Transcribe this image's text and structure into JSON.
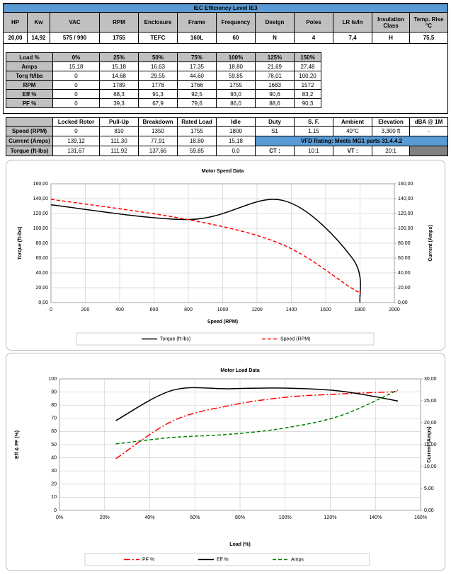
{
  "spec_table": {
    "title": "IEC Efficiency Level IE3",
    "headers": [
      "HP",
      "Kw",
      "VAC",
      "RPM",
      "Enclosure",
      "Frame",
      "Frequency",
      "Design",
      "Poles",
      "LR ls/ln",
      "Insulation Class",
      "Temp. Rise °C"
    ],
    "row": [
      "20,00",
      "14,92",
      "575 / 990",
      "1755",
      "TEFC",
      "160L",
      "60",
      "N",
      "4",
      "7,4",
      "H",
      "75,5"
    ]
  },
  "load_table": {
    "headers": [
      "Load %",
      "0%",
      "25%",
      "50%",
      "75%",
      "100%",
      "125%",
      "150%"
    ],
    "rows": [
      [
        "Amps",
        "15,18",
        "15,18",
        "16,63",
        "17,35",
        "18,80",
        "21,69",
        "27,48"
      ],
      [
        "Torq ft/lbs",
        "0",
        "14,68",
        "29,55",
        "44,60",
        "59,85",
        "78,01",
        "100,20"
      ],
      [
        "RPM",
        "0",
        "1789",
        "1778",
        "1766",
        "1755",
        "1683",
        "1572"
      ],
      [
        "Eff %",
        "0",
        "68,3",
        "91,3",
        "92,5",
        "93,0",
        "90,6",
        "83,2"
      ],
      [
        "PF %",
        "0",
        "39,3",
        "67,9",
        "79,6",
        "86,0",
        "88,6",
        "90,3"
      ]
    ]
  },
  "performance_table": {
    "headers": [
      "Locked Rotor",
      "Pull-Up",
      "Breakdown",
      "Rated Load",
      "Idle",
      "Duty",
      "S. F.",
      "Ambient",
      "Elevation",
      "dBA @ 1M"
    ],
    "rows": [
      [
        "Speed (RPM)",
        "0",
        "810",
        "1350",
        "1755",
        "1800",
        "S1",
        "1,15",
        "40°C",
        "3,300 ft",
        "-"
      ],
      [
        "Current (Amps)",
        "139,12",
        "111,30",
        "77,91",
        "18,80",
        "15,18",
        "VFD Rating: Meets MG1 parts 31.4.4.2"
      ],
      [
        "Torque (ft-lbs)",
        "131,67",
        "111,92",
        "137,66",
        "59,85",
        "0,0",
        "CT :",
        "10:1",
        "VT :",
        "20:1"
      ]
    ]
  },
  "chart_data": [
    {
      "type": "line",
      "title": "Motor Speed Data",
      "x_label": "Speed (RPM)",
      "y_label": "Torque (ft-lbs)",
      "y2_label": "Current (Amps)",
      "x": [
        0,
        810,
        1350,
        1755,
        1800
      ],
      "series": [
        {
          "name": "Torque (ft-lbs)",
          "color": "#000000",
          "style": "solid",
          "values": [
            131.67,
            111.92,
            137.66,
            59.85,
            0
          ]
        },
        {
          "name": "Speed (RPM)",
          "color": "#ff0000",
          "style": "dashed",
          "axis": "y2",
          "values": [
            139.12,
            111.3,
            77.91,
            18.8,
            15.18
          ]
        }
      ],
      "xlim": [
        0,
        2000
      ],
      "xticks": [
        0,
        200,
        400,
        600,
        800,
        1000,
        1200,
        1400,
        1600,
        1800,
        2000
      ],
      "ylim": [
        0,
        160
      ],
      "yticks": [
        {
          "value": 0,
          "label": "0,00"
        },
        {
          "value": 20,
          "label": "20,00"
        },
        {
          "value": 40,
          "label": "40,00"
        },
        {
          "value": 60,
          "label": "60,00"
        },
        {
          "value": 80,
          "label": "80,00"
        },
        {
          "value": 100,
          "label": "100,00"
        },
        {
          "value": 120,
          "label": "120,00"
        },
        {
          "value": 140,
          "label": "140,00"
        },
        {
          "value": 160,
          "label": "160,00"
        }
      ],
      "y2lim": [
        0,
        160
      ],
      "y2ticks": [
        {
          "value": 0,
          "label": "0,00"
        },
        {
          "value": 20,
          "label": "20,00"
        },
        {
          "value": 40,
          "label": "40,00"
        },
        {
          "value": 60,
          "label": "60,00"
        },
        {
          "value": 80,
          "label": "80,00"
        },
        {
          "value": 100,
          "label": "100,00"
        },
        {
          "value": 120,
          "label": "120,00"
        },
        {
          "value": 140,
          "label": "140,00"
        },
        {
          "value": 160,
          "label": "160,00"
        }
      ],
      "grid": true,
      "legend": "bottom"
    },
    {
      "type": "line",
      "title": "Motor Load Data",
      "x_label": "Load (%)",
      "y_label": "Eff & PF (%)",
      "y2_label": "Current (Amps)",
      "x": [
        25,
        50,
        75,
        100,
        125,
        150
      ],
      "series": [
        {
          "name": "PF %",
          "color": "#ff0000",
          "style": "dashdot",
          "values": [
            39.3,
            67.9,
            79.6,
            86.0,
            88.6,
            90.3
          ]
        },
        {
          "name": "Eff %",
          "color": "#000000",
          "style": "solid",
          "values": [
            68.3,
            91.3,
            92.5,
            93.0,
            90.6,
            83.2
          ]
        },
        {
          "name": "Amps",
          "color": "#008000",
          "style": "dashed",
          "axis": "y2",
          "values": [
            15.18,
            16.63,
            17.35,
            18.8,
            21.69,
            27.48
          ]
        }
      ],
      "xlim": [
        0,
        160
      ],
      "xticks": [
        {
          "value": 0,
          "label": "0%"
        },
        {
          "value": 20,
          "label": "20%"
        },
        {
          "value": 40,
          "label": "40%"
        },
        {
          "value": 60,
          "label": "60%"
        },
        {
          "value": 80,
          "label": "80%"
        },
        {
          "value": 100,
          "label": "100%"
        },
        {
          "value": 120,
          "label": "120%"
        },
        {
          "value": 140,
          "label": "140%"
        },
        {
          "value": 160,
          "label": "160%"
        }
      ],
      "ylim": [
        0,
        100
      ],
      "yticks": [
        0,
        10,
        20,
        30,
        40,
        50,
        60,
        70,
        80,
        90,
        100
      ],
      "y2lim": [
        0,
        30
      ],
      "y2ticks": [
        {
          "value": 0,
          "label": "0,00"
        },
        {
          "value": 5,
          "label": "5,00"
        },
        {
          "value": 10,
          "label": "10,00"
        },
        {
          "value": 15,
          "label": "15,00"
        },
        {
          "value": 20,
          "label": "20,00"
        },
        {
          "value": 25,
          "label": "25,00"
        },
        {
          "value": 30,
          "label": "30,00"
        }
      ],
      "grid": true,
      "legend": "bottom"
    }
  ]
}
